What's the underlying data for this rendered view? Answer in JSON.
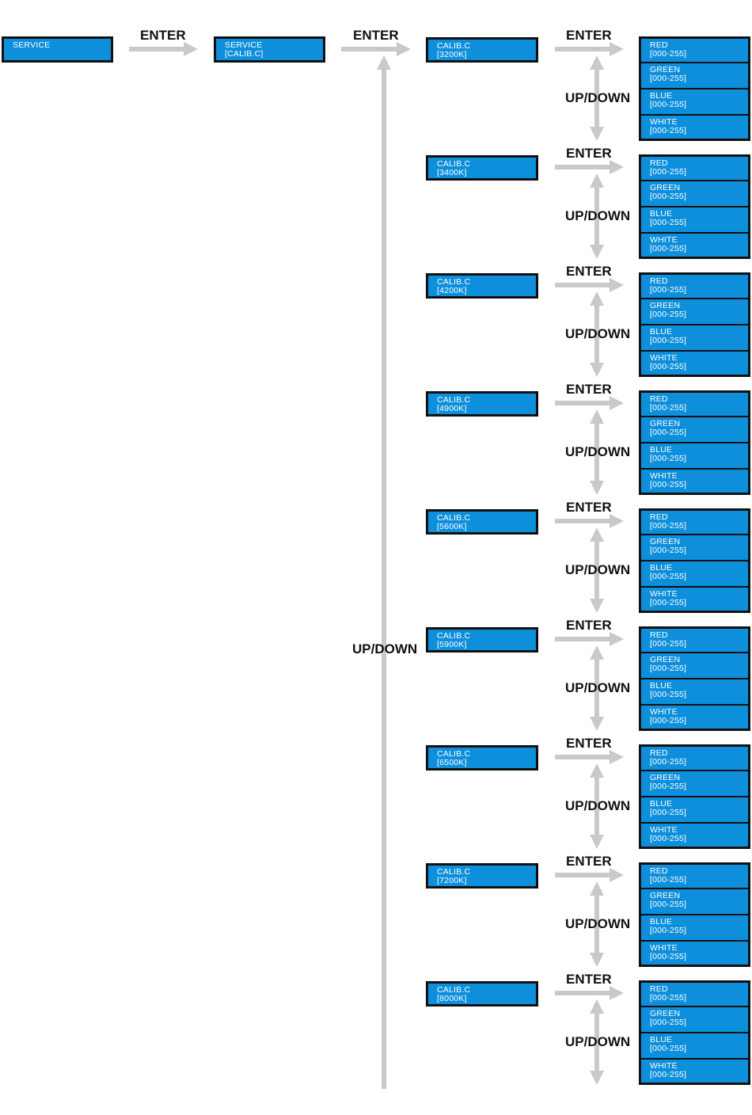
{
  "colors": {
    "display_bg": "#0e8fdb",
    "display_border": "#111111",
    "display_text": "#ffffff",
    "arrow": "#c9c9c9",
    "label_text": "#111111"
  },
  "labels": {
    "enter": "ENTER",
    "updown": "UP/DOWN"
  },
  "service": {
    "line1": "SERVICE"
  },
  "service_calib": {
    "line1": "SERVICE",
    "line2": "[CALIB.C]"
  },
  "calib_title": "CALIB.C",
  "temperatures": [
    "[3200K]",
    "[3400K]",
    "[4200K]",
    "[4900K]",
    "[5600K]",
    "[5900K]",
    "[6500K]",
    "[7200K]",
    "[8000K]"
  ],
  "channels": [
    {
      "name": "RED",
      "range": "[000-255]"
    },
    {
      "name": "GREEN",
      "range": "[000-255]"
    },
    {
      "name": "BLUE",
      "range": "[000-255]"
    },
    {
      "name": "WHITE",
      "range": "[000-255]"
    }
  ]
}
